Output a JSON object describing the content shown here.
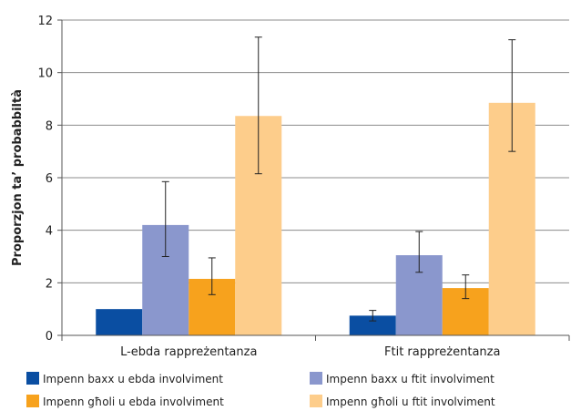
{
  "chart_data": {
    "type": "bar",
    "title": "",
    "xlabel": "",
    "ylabel": "Proporzjon ta’ probabbiltà",
    "ylim": [
      0,
      12
    ],
    "yticks": [
      0,
      2,
      4,
      6,
      8,
      10,
      12
    ],
    "grid": true,
    "legend_position": "bottom",
    "categories": [
      "L-ebda rappreżentanza",
      "Ftit rappreżentanza"
    ],
    "series": [
      {
        "name": "Impenn baxx u ebda involviment",
        "color": "#0a4ea2",
        "values": [
          1.0,
          0.75
        ],
        "error_low": [
          null,
          0.55
        ],
        "error_high": [
          null,
          0.95
        ]
      },
      {
        "name": "Impenn baxx u ftit involviment",
        "color": "#8a97cd",
        "values": [
          4.2,
          3.05
        ],
        "error_low": [
          3.0,
          2.4
        ],
        "error_high": [
          5.85,
          3.95
        ]
      },
      {
        "name": "Impenn għoli u ebda involviment",
        "color": "#f7a21d",
        "values": [
          2.15,
          1.8
        ],
        "error_low": [
          1.55,
          1.4
        ],
        "error_high": [
          2.95,
          2.3
        ]
      },
      {
        "name": "Impenn għoli u ftit involviment",
        "color": "#fdcd8b",
        "values": [
          8.35,
          8.85
        ],
        "error_low": [
          6.15,
          7.0
        ],
        "error_high": [
          11.35,
          11.25
        ]
      }
    ]
  }
}
